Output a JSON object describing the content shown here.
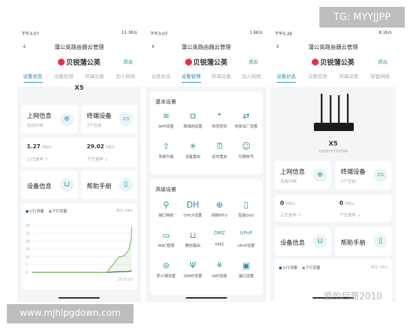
{
  "app_title": "蒲公英路由器云管理",
  "brand": "贝锐蒲公英",
  "logout": "退出",
  "colors": {
    "accent": "#2a8fa0",
    "brand_red": "#e3304b",
    "upstream": "#1f5f8b",
    "downstream": "#7fb85a"
  },
  "watermarks": {
    "tg": "TG: MYYJJPP",
    "site": "www.mjhlpgdown.com",
    "weibo": "爱的目哥2010"
  },
  "phone1": {
    "status_time": "下午3:07",
    "status_right": "11.3K/s",
    "tabs": [
      "设备状态",
      "设备管理",
      "终端设备",
      "加入网络"
    ],
    "device_name": "X5",
    "net_info": {
      "title": "上网信息",
      "sub": "无线中继"
    },
    "terminals": {
      "title": "终端设备",
      "sub": "3个在线"
    },
    "up": {
      "value": "1.27",
      "unit": "KB/s",
      "label": "上行速率 ↑"
    },
    "down": {
      "value": "29.02",
      "unit": "KB/s",
      "label": "下行速率 ↓"
    },
    "device_info": "设备信息",
    "help": "帮助手册"
  },
  "chart_data": {
    "type": "line",
    "legend": [
      "上行流量",
      "下行流量"
    ],
    "unit": "单位: KB/s",
    "yticks": [
      "0",
      "5",
      "10",
      "15",
      "20",
      "25",
      "30"
    ],
    "ylim": [
      0,
      30
    ],
    "xlabel_last": "15:07:02",
    "series": [
      {
        "name": "上行流量",
        "values": [
          0,
          0,
          0,
          0,
          0,
          0,
          0,
          0.5,
          1.27
        ]
      },
      {
        "name": "下行流量",
        "values": [
          0,
          0,
          0,
          0,
          0,
          0,
          0,
          10,
          29.02
        ]
      }
    ]
  },
  "phone2": {
    "status_time": "下午3:07",
    "status_right": "1.6K/s",
    "tabs": [
      "设备状态",
      "设备管理",
      "终端设备",
      "加入网络"
    ],
    "basic_title": "基本设置",
    "basic": [
      {
        "icon": "wifi-icon",
        "g": "≋",
        "label": "WiFi设置"
      },
      {
        "icon": "lan-icon",
        "g": "⧉",
        "label": "局域网设置"
      },
      {
        "icon": "lock-icon",
        "g": "🔒︎",
        "label": "修改密码"
      },
      {
        "icon": "reset-icon",
        "g": "⇄",
        "label": "恢复出厂设置"
      },
      {
        "icon": "upgrade-icon",
        "g": "⇧",
        "label": "系统升级"
      },
      {
        "icon": "restart-icon",
        "g": "✳",
        "label": "设备重启"
      },
      {
        "icon": "clock-icon",
        "g": "⏰︎",
        "label": "定时重启"
      },
      {
        "icon": "user-switch-icon",
        "g": "☺",
        "label": "切换帐号"
      }
    ],
    "advanced_title": "高级设置",
    "advanced": [
      {
        "icon": "port-map-icon",
        "g": "⚲",
        "label": "端口映射"
      },
      {
        "icon": "dhcp-icon",
        "g": "DH",
        "label": "DHCP设置"
      },
      {
        "icon": "mtu-icon",
        "g": "⊕",
        "label": "网络MTU"
      },
      {
        "icon": "qos-icon",
        "g": "▯",
        "label": "智能QoS"
      },
      {
        "icon": "mac-icon",
        "g": "▭",
        "label": "MAC管理"
      },
      {
        "icon": "route-icon",
        "g": "⊔",
        "label": "静态路由"
      },
      {
        "icon": "dmz-icon",
        "g": "DMZ",
        "label": "DMZ"
      },
      {
        "icon": "upnp-icon",
        "g": "UPnP",
        "label": "UPnP设置"
      },
      {
        "icon": "firewall-icon",
        "g": "⊜",
        "label": "防火墙设置"
      },
      {
        "icon": "snmp-icon",
        "g": "Ψ",
        "label": "SNMP设置"
      },
      {
        "icon": "nat-icon",
        "g": "⚘",
        "label": "NAT加速"
      },
      {
        "icon": "port-icon",
        "g": "▣",
        "label": "端口设置"
      }
    ]
  },
  "phone3": {
    "status_time": "下午5:26",
    "status_right": "8.1K/s",
    "tabs": [
      "设备状态",
      "设备管理",
      "终端设备",
      "智能网络"
    ],
    "device_name": "X5",
    "serial": "102975732799",
    "net_info": {
      "title": "上网信息",
      "sub": "无线中继"
    },
    "terminals": {
      "title": "终端设备",
      "sub": "3个在线"
    },
    "up": {
      "value": "0",
      "unit": "KB/s",
      "label": "上行速率 ↑"
    },
    "down": {
      "value": "0",
      "unit": "KB/s",
      "label": "下行速率 ↓"
    },
    "device_info": "设备信息",
    "help": "帮助手册",
    "legend": [
      "上行流量",
      "下行流量"
    ],
    "unit": "单位: KB/s"
  }
}
